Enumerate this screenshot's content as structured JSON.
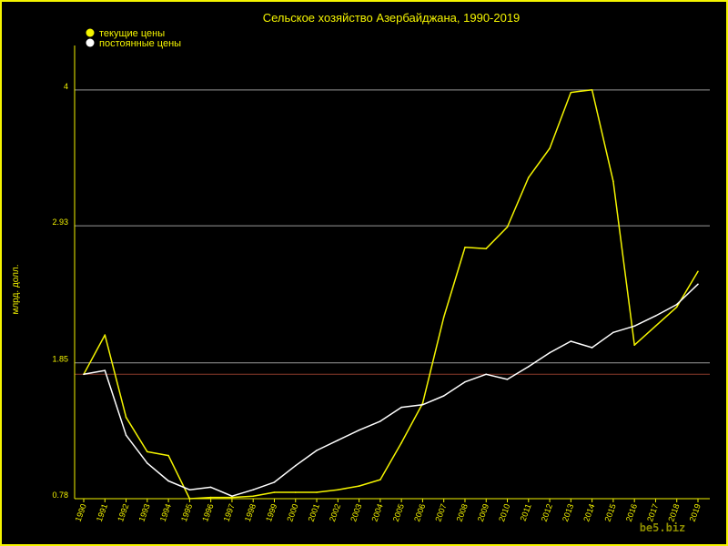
{
  "chart_data": {
    "type": "line",
    "title": "Сельское хозяйство Азербайджана, 1990-2019",
    "ylabel": "млрд. долл.",
    "watermark": "be5.biz",
    "ylim": [
      0.78,
      4.35
    ],
    "yticks": [
      {
        "value": 0.78,
        "label": "0.78"
      },
      {
        "value": 1.85,
        "label": "1.85"
      },
      {
        "value": 2.93,
        "label": "2.93"
      },
      {
        "value": 4.0,
        "label": "4"
      }
    ],
    "reference_line": {
      "value": 1.76,
      "color": "#8b3a2b"
    },
    "x": [
      "1990",
      "1991",
      "1992",
      "1993",
      "1994",
      "1995",
      "1996",
      "1997",
      "1998",
      "1999",
      "2000",
      "2001",
      "2002",
      "2003",
      "2004",
      "2005",
      "2006",
      "2007",
      "2008",
      "2009",
      "2010",
      "2011",
      "2012",
      "2013",
      "2014",
      "2015",
      "2016",
      "2017",
      "2018",
      "2019"
    ],
    "series": [
      {
        "name": "текущие цены",
        "color": "#f4f400",
        "values": [
          1.76,
          2.07,
          1.42,
          1.15,
          1.12,
          0.78,
          0.79,
          0.79,
          0.8,
          0.83,
          0.83,
          0.83,
          0.85,
          0.88,
          0.93,
          1.22,
          1.53,
          2.21,
          2.76,
          2.75,
          2.92,
          3.31,
          3.54,
          3.98,
          4.0,
          3.28,
          1.99,
          2.14,
          2.29,
          2.57
        ]
      },
      {
        "name": "постоянные цены",
        "color": "#ffffff",
        "values": [
          1.76,
          1.79,
          1.28,
          1.06,
          0.92,
          0.85,
          0.87,
          0.8,
          0.85,
          0.91,
          1.04,
          1.16,
          1.24,
          1.32,
          1.39,
          1.5,
          1.52,
          1.59,
          1.7,
          1.76,
          1.72,
          1.82,
          1.93,
          2.02,
          1.97,
          2.09,
          2.14,
          2.22,
          2.31,
          2.47
        ]
      }
    ],
    "grid": true,
    "legend": "top-left"
  }
}
